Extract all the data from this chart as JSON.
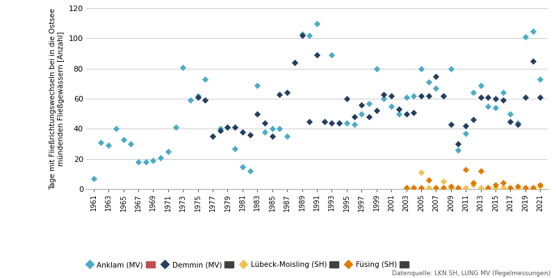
{
  "ylabel": "Tage mit Fließrichtungswechseln bei in die Ostsee\nmündenden Fließgewässern [Anzahl]",
  "source_text": "Datenquelle: LKN.SH, LUNG MV (Pegelmessungen)",
  "ylim": [
    0,
    120
  ],
  "yticks": [
    0,
    20,
    40,
    60,
    80,
    100,
    120
  ],
  "background_color": "#ffffff",
  "grid_color": "#cccccc",
  "anklam": {
    "label": "Anklam (MV)",
    "color": "#4BACC6",
    "trend_color": "#C0504D",
    "years": [
      1961,
      1962,
      1963,
      1964,
      1965,
      1966,
      1967,
      1968,
      1969,
      1970,
      1971,
      1972,
      1973,
      1974,
      1975,
      1976,
      1977,
      1978,
      1979,
      1980,
      1981,
      1982,
      1983,
      1984,
      1985,
      1986,
      1987,
      1988,
      1989,
      1990,
      1991,
      1992,
      1993,
      1994,
      1995,
      1996,
      1997,
      1998,
      1999,
      2000,
      2001,
      2002,
      2003,
      2004,
      2005,
      2006,
      2007,
      2008,
      2009,
      2010,
      2011,
      2012,
      2013,
      2014,
      2015,
      2016,
      2017,
      2018,
      2019,
      2020,
      2021
    ],
    "values": [
      7,
      31,
      29,
      40,
      33,
      30,
      18,
      18,
      19,
      21,
      25,
      41,
      81,
      59,
      62,
      73,
      35,
      40,
      41,
      27,
      15,
      12,
      69,
      38,
      40,
      40,
      35,
      84,
      103,
      102,
      110,
      45,
      89,
      44,
      44,
      43,
      50,
      57,
      80,
      60,
      55,
      50,
      61,
      62,
      80,
      71,
      67,
      62,
      80,
      26,
      37,
      64,
      69,
      55,
      54,
      64,
      50,
      44,
      101,
      105,
      73
    ]
  },
  "demmin": {
    "label": "Demmin (MV)",
    "color": "#243F60",
    "trend_color": "#595959",
    "years": [
      1975,
      1976,
      1977,
      1978,
      1979,
      1980,
      1981,
      1982,
      1983,
      1984,
      1985,
      1986,
      1987,
      1988,
      1989,
      1990,
      1991,
      1992,
      1993,
      1994,
      1995,
      1996,
      1997,
      1998,
      1999,
      2000,
      2001,
      2002,
      2003,
      2004,
      2005,
      2006,
      2007,
      2008,
      2009,
      2010,
      2011,
      2012,
      2013,
      2014,
      2015,
      2016,
      2017,
      2018,
      2019,
      2020,
      2021
    ],
    "values": [
      61,
      59,
      35,
      39,
      41,
      41,
      38,
      36,
      50,
      44,
      35,
      63,
      64,
      84,
      102,
      45,
      89,
      45,
      44,
      44,
      60,
      48,
      56,
      48,
      52,
      63,
      62,
      53,
      50,
      51,
      62,
      62,
      75,
      62,
      43,
      30,
      42,
      46,
      61,
      61,
      60,
      59,
      45,
      43,
      61,
      85,
      61
    ]
  },
  "lubeck": {
    "label": "Lübeck-Moisling (SH)",
    "color": "#F0C050",
    "trend_color": "#595959",
    "years": [
      2003,
      2004,
      2005,
      2006,
      2007,
      2008,
      2009,
      2010,
      2011,
      2012,
      2013,
      2014,
      2015,
      2016,
      2017,
      2018,
      2019,
      2020,
      2021
    ],
    "values": [
      1,
      1,
      11,
      1,
      1,
      5,
      1,
      1,
      1,
      3,
      1,
      1,
      1,
      1,
      1,
      1,
      1,
      1,
      2
    ]
  },
  "fusing": {
    "label": "Füsing (SH)",
    "color": "#E07B00",
    "trend_color": "#595959",
    "years": [
      2003,
      2004,
      2005,
      2006,
      2007,
      2008,
      2009,
      2010,
      2011,
      2012,
      2013,
      2014,
      2015,
      2016,
      2017,
      2018,
      2019,
      2020,
      2021
    ],
    "values": [
      1,
      1,
      1,
      6,
      1,
      1,
      2,
      1,
      13,
      4,
      12,
      1,
      3,
      4,
      1,
      2,
      1,
      1,
      3
    ]
  },
  "xtick_years": [
    1961,
    1963,
    1965,
    1967,
    1969,
    1971,
    1973,
    1975,
    1977,
    1979,
    1981,
    1983,
    1985,
    1987,
    1989,
    1991,
    1993,
    1995,
    1997,
    1999,
    2001,
    2003,
    2005,
    2007,
    2009,
    2011,
    2013,
    2015,
    2017,
    2019,
    2021
  ]
}
